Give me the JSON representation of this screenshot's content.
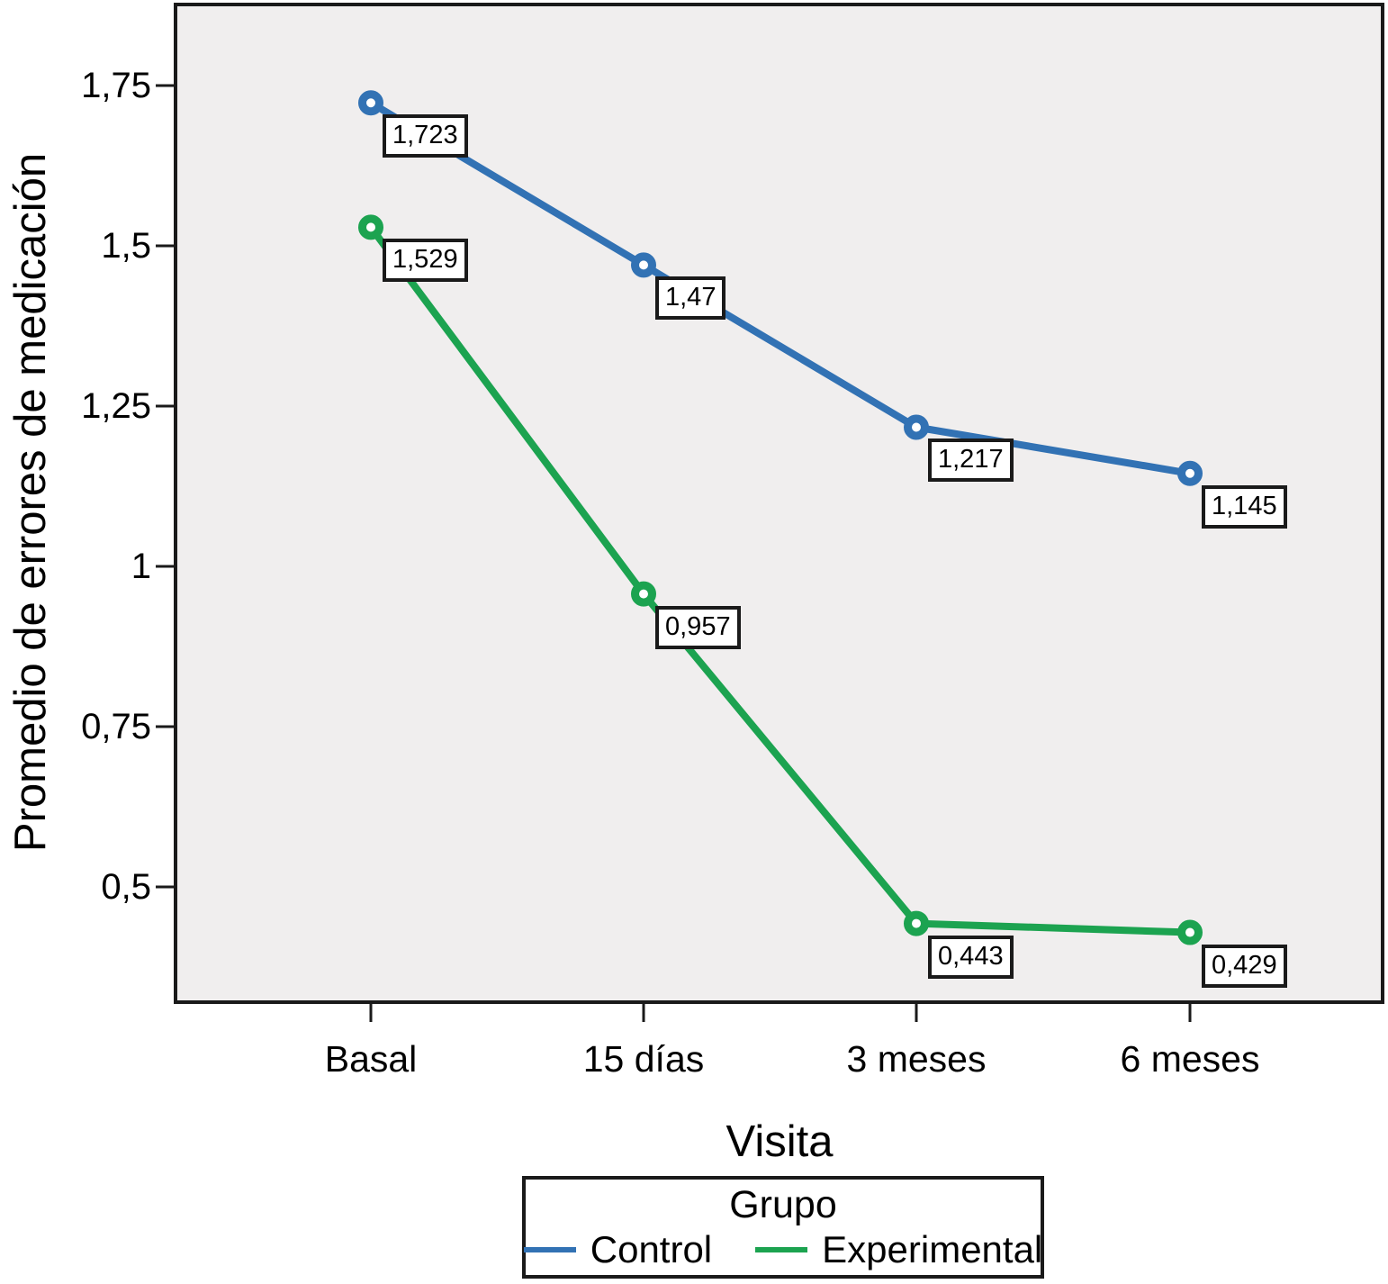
{
  "chart_data": {
    "type": "line",
    "xlabel": "Visita",
    "ylabel": "Promedio de errores de medicación",
    "categories": [
      "Basal",
      "15 días",
      "3 meses",
      "6 meses"
    ],
    "series": [
      {
        "name": "Control",
        "color": "#3272B4",
        "values": [
          1.723,
          1.47,
          1.217,
          1.145
        ],
        "point_labels": [
          "1,723",
          "1,47",
          "1,217",
          "1,145"
        ]
      },
      {
        "name": "Experimental",
        "color": "#1CA350",
        "values": [
          1.529,
          0.957,
          0.443,
          0.429
        ],
        "point_labels": [
          "1,529",
          "0,957",
          "0,443",
          "0,429"
        ]
      }
    ],
    "y_ticks": [
      {
        "value": 1.75,
        "label": "1,75"
      },
      {
        "value": 1.5,
        "label": "1,5"
      },
      {
        "value": 1.25,
        "label": "1,25"
      },
      {
        "value": 1.0,
        "label": "1"
      },
      {
        "value": 0.75,
        "label": "0,75"
      },
      {
        "value": 0.5,
        "label": "0,5"
      }
    ],
    "ylim": [
      0.32,
      1.88
    ],
    "grid": false,
    "legend": {
      "title": "Grupo",
      "position": "bottom"
    },
    "colors": {
      "plot_background": "#F0EEEE",
      "frame": "#1A1A1A",
      "page_background": "#FFFFFF"
    }
  }
}
